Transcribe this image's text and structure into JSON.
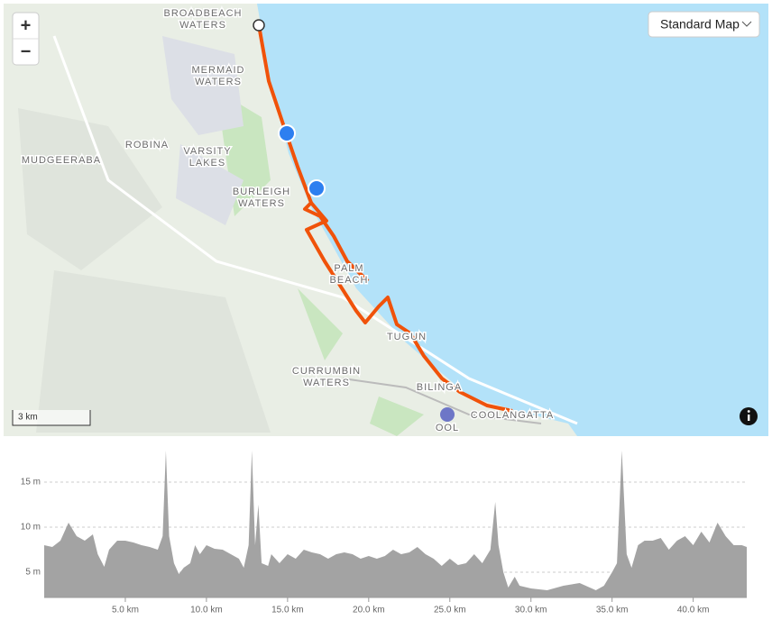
{
  "map": {
    "labels": [
      [
        "BROADBEACH",
        "WATERS"
      ],
      [
        "MERMAID",
        "WATERS"
      ],
      [
        "ROBINA"
      ],
      [
        "VARSITY",
        "LAKES"
      ],
      [
        "MUDGEERABA"
      ],
      [
        "BURLEIGH",
        "WATERS"
      ],
      [
        "PALM",
        "BEACH"
      ],
      [
        "TUGUN"
      ],
      [
        "CURRUMBIN",
        "WATERS"
      ],
      [
        "BILINGA"
      ],
      [
        "COOLANGATTA"
      ],
      [
        "OOL"
      ]
    ],
    "zoom_in": "+",
    "zoom_out": "−",
    "map_style": "Standard Map",
    "scale": "3 km"
  },
  "chart_data": {
    "type": "area",
    "color": "#a3a3a3",
    "x": [
      0,
      0.5,
      1,
      1.5,
      2,
      2.5,
      3,
      3.3,
      3.7,
      4,
      4.5,
      5,
      5.5,
      6,
      6.5,
      7,
      7.3,
      7.5,
      7.7,
      8,
      8.3,
      8.6,
      9,
      9.3,
      9.6,
      10,
      10.5,
      11,
      11.5,
      12,
      12.3,
      12.6,
      12.8,
      13,
      13.2,
      13.4,
      13.8,
      14,
      14.5,
      15,
      15.5,
      16,
      16.5,
      17,
      17.5,
      18,
      18.5,
      19,
      19.5,
      20,
      20.5,
      21,
      21.5,
      22,
      22.5,
      23,
      23.5,
      24,
      24.5,
      25,
      25.5,
      26,
      26.5,
      27,
      27.5,
      27.8,
      28,
      28.3,
      28.6,
      29,
      29.3,
      30,
      31,
      32,
      33,
      34,
      34.5,
      35,
      35.3,
      35.6,
      35.9,
      36.2,
      36.6,
      37,
      37.5,
      38,
      38.5,
      39,
      39.5,
      40,
      40.5,
      41,
      41.5,
      42,
      42.5,
      43,
      43.3
    ],
    "values": [
      8,
      7.8,
      8.5,
      10.5,
      9,
      8.5,
      9.2,
      7,
      5.6,
      7.5,
      8.5,
      8.5,
      8.3,
      8,
      7.8,
      7.5,
      9,
      18.5,
      9,
      6,
      4.8,
      5.5,
      6,
      8,
      7,
      8,
      7.6,
      7.5,
      7,
      6.5,
      5.5,
      8,
      18.5,
      8,
      12.5,
      6,
      5.7,
      7,
      6,
      7,
      6.5,
      7.5,
      7.2,
      7,
      6.5,
      7,
      7.2,
      7,
      6.5,
      6.8,
      6.5,
      6.8,
      7.5,
      7,
      7.2,
      7.8,
      7,
      6.5,
      5.7,
      6.5,
      5.8,
      6,
      7,
      6,
      7.5,
      12.8,
      8,
      5,
      3.3,
      4.5,
      3.5,
      3.2,
      3,
      3.5,
      3.8,
      3,
      3.5,
      5,
      6,
      18.5,
      7,
      5.5,
      8,
      8.5,
      8.5,
      8.8,
      7.5,
      8.5,
      9,
      8,
      9.5,
      8.3,
      10.5,
      9,
      8,
      8,
      7.8
    ],
    "xlim": [
      0,
      43.3
    ],
    "ylim": [
      2.2,
      18.8
    ],
    "xticks": [
      {
        "value": 5,
        "label": "5.0 km"
      },
      {
        "value": 10,
        "label": "10.0 km"
      },
      {
        "value": 15,
        "label": "15.0 km"
      },
      {
        "value": 20,
        "label": "20.0 km"
      },
      {
        "value": 25,
        "label": "25.0 km"
      },
      {
        "value": 30,
        "label": "30.0 km"
      },
      {
        "value": 35,
        "label": "35.0 km"
      },
      {
        "value": 40,
        "label": "40.0 km"
      }
    ],
    "yticks": [
      {
        "value": 5,
        "label": "5 m"
      },
      {
        "value": 10,
        "label": "10 m"
      },
      {
        "value": 15,
        "label": "15 m"
      }
    ],
    "grid": true
  }
}
